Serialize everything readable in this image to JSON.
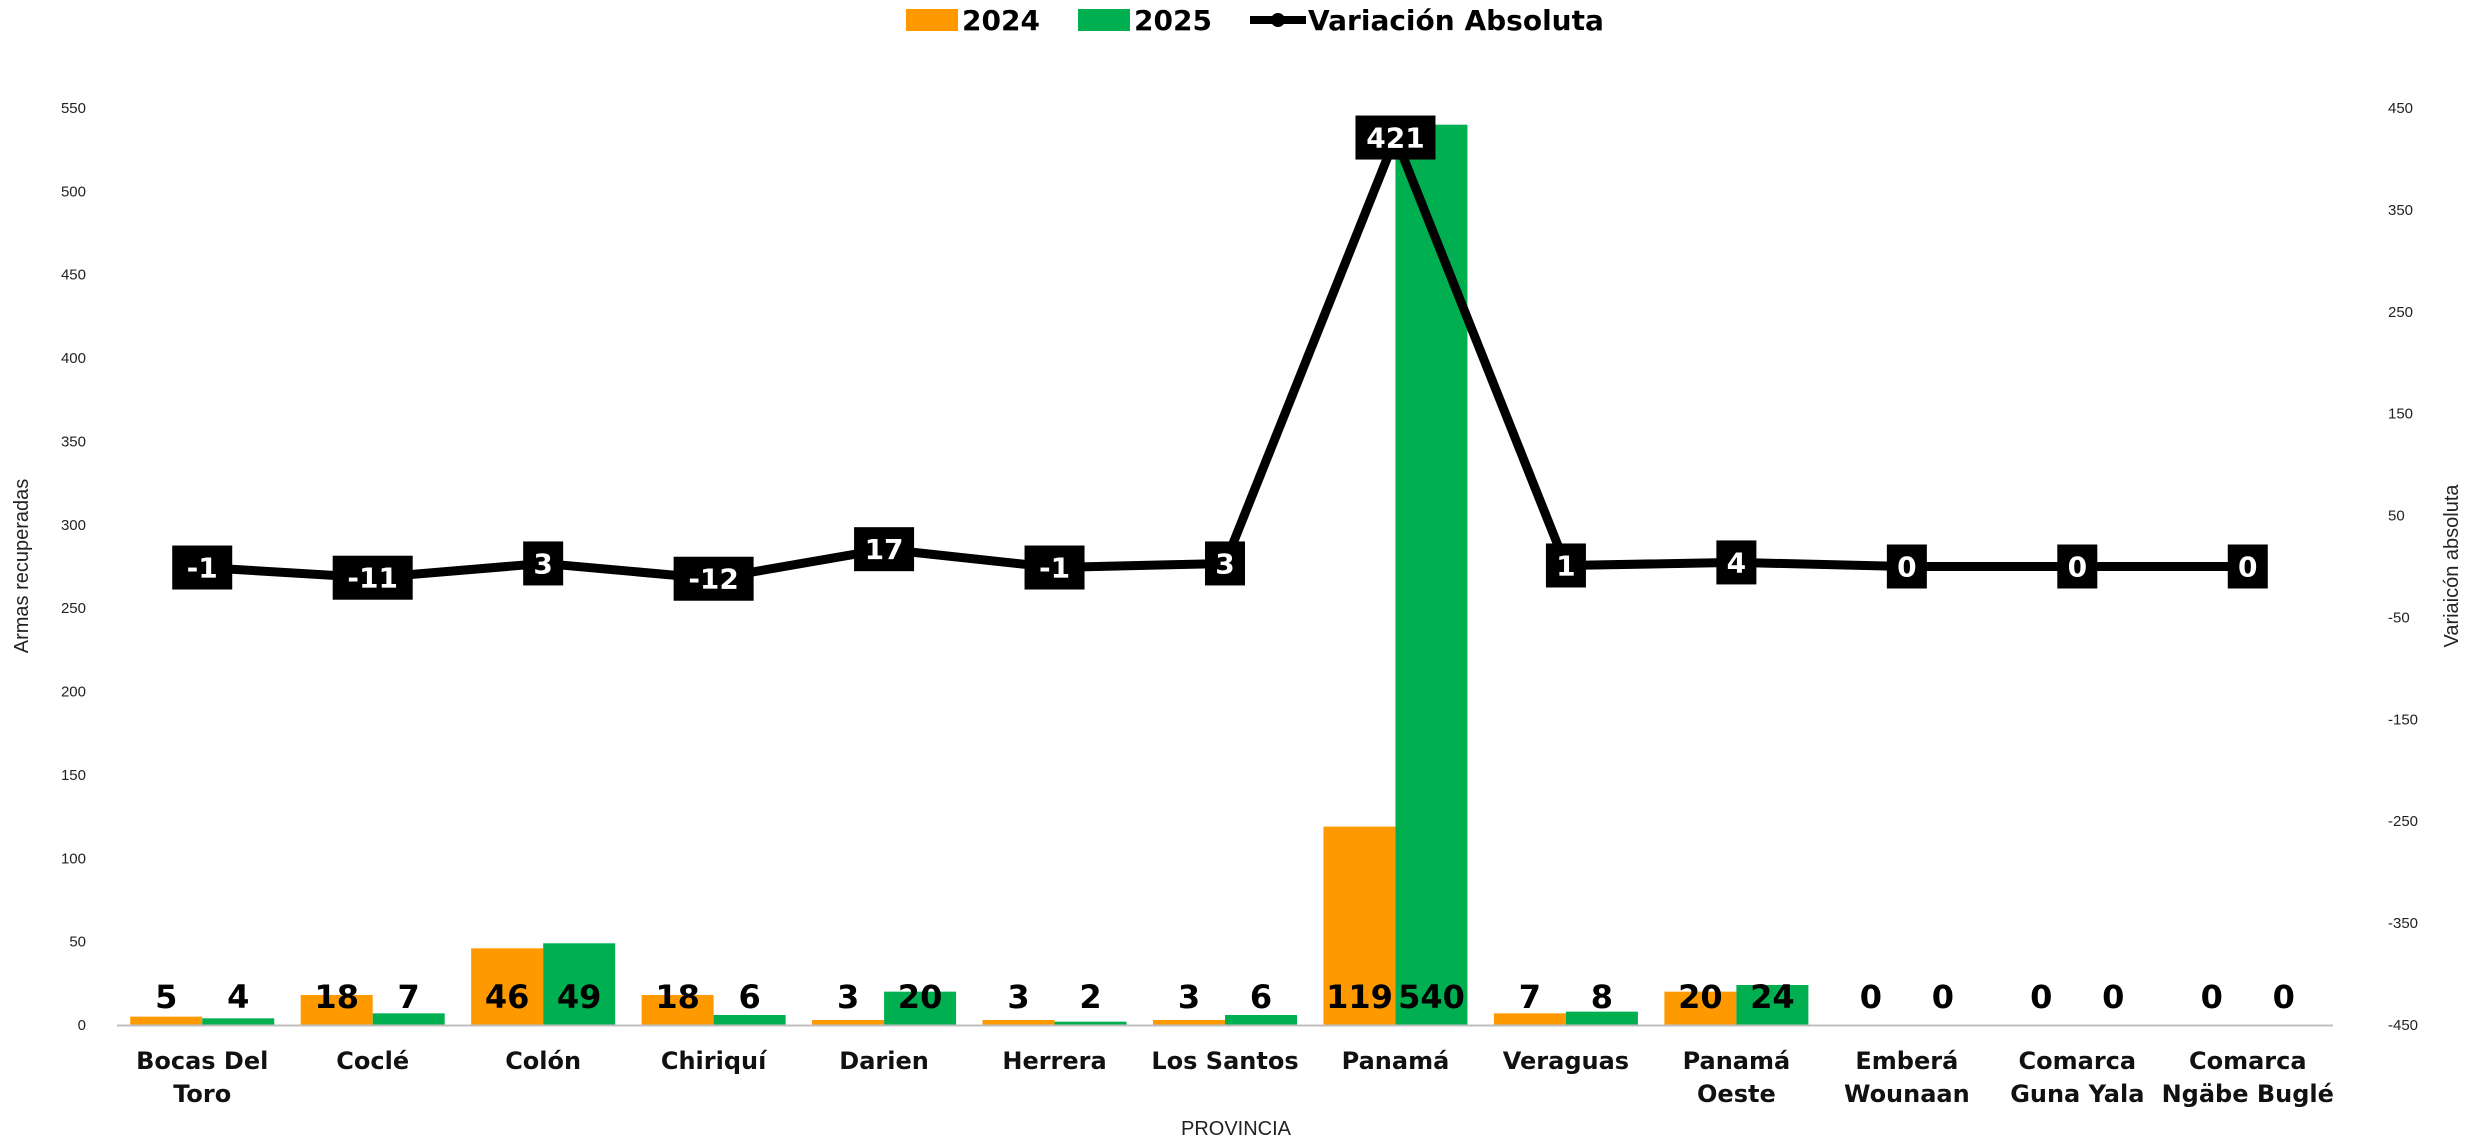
{
  "chart_data": {
    "type": "bar",
    "categories": [
      [
        "Bocas Del",
        "Toro"
      ],
      [
        "Coclé"
      ],
      [
        "Colón"
      ],
      [
        "Chiriquí"
      ],
      [
        "Darien"
      ],
      [
        "Herrera"
      ],
      [
        "Los Santos"
      ],
      [
        "Panamá"
      ],
      [
        "Veraguas"
      ],
      [
        "Panamá",
        "Oeste"
      ],
      [
        "Emberá",
        "Wounaan"
      ],
      [
        "Comarca",
        "Guna Yala"
      ],
      [
        "Comarca",
        "Ngäbe Buglé"
      ]
    ],
    "series": [
      {
        "name": "2024",
        "type": "bar",
        "axis": "left",
        "color": "#FF9900",
        "values": [
          5,
          18,
          46,
          18,
          3,
          3,
          3,
          119,
          7,
          20,
          0,
          0,
          0
        ]
      },
      {
        "name": "2025",
        "type": "bar",
        "axis": "left",
        "color": "#00B050",
        "values": [
          4,
          7,
          49,
          6,
          20,
          2,
          6,
          540,
          8,
          24,
          0,
          0,
          0
        ]
      },
      {
        "name": "Variación Absoluta",
        "type": "line",
        "axis": "right",
        "color": "#000000",
        "values": [
          -1,
          -11,
          3,
          -12,
          17,
          -1,
          3,
          421,
          1,
          4,
          0,
          0,
          0
        ]
      }
    ],
    "xlabel": "PROVINCIA",
    "ylabel": "Armas recuperadas",
    "y2label": "Variaicón absoluta",
    "ylim": [
      0,
      550
    ],
    "yticks": [
      0,
      50,
      100,
      150,
      200,
      250,
      300,
      350,
      400,
      450,
      500,
      550
    ],
    "y2lim": [
      -450,
      450
    ],
    "y2ticks": [
      -450,
      -350,
      -250,
      -150,
      -50,
      50,
      150,
      250,
      350,
      450
    ],
    "legend_position": "top-center",
    "grid": false
  }
}
